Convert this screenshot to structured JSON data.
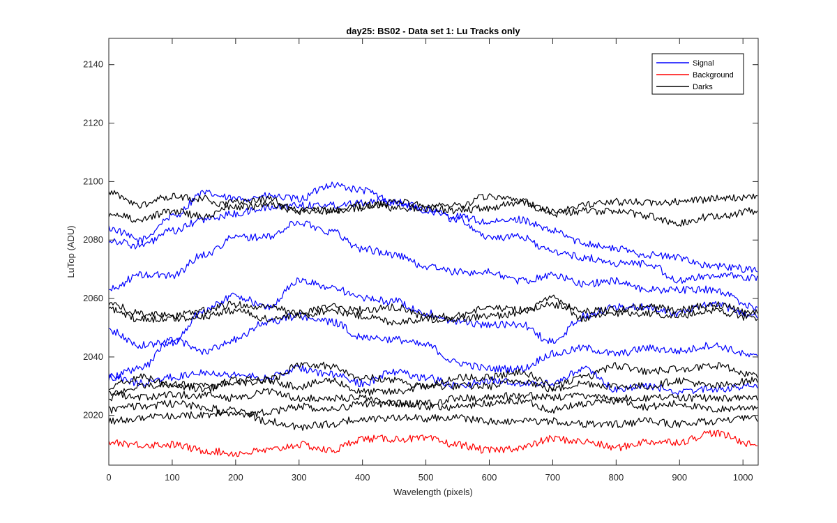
{
  "chart_data": {
    "type": "line",
    "title": "day25: BS02 - Data set 1: Lu Tracks only",
    "xlabel": "Wavelength (pixels)",
    "ylabel": "LuTop (ADU)",
    "xlim": [
      0,
      1024
    ],
    "ylim": [
      2003,
      2149
    ],
    "xticks": [
      0,
      100,
      200,
      300,
      400,
      500,
      600,
      700,
      800,
      900,
      1000
    ],
    "xtick_labels": [
      "0",
      "100",
      "200",
      "300",
      "400",
      "500",
      "600",
      "700",
      "800",
      "900",
      "1000"
    ],
    "yticks": [
      2020,
      2040,
      2060,
      2080,
      2100,
      2120,
      2140
    ],
    "ytick_labels": [
      "2020",
      "2040",
      "2060",
      "2080",
      "2100",
      "2120",
      "2140"
    ],
    "grid": false,
    "legend_position": "top-right",
    "legend": [
      {
        "label": "Signal",
        "color": "#0000ff"
      },
      {
        "label": "Background",
        "color": "#ff0000"
      },
      {
        "label": "Darks",
        "color": "#000000"
      }
    ],
    "x": [
      0,
      50,
      100,
      150,
      200,
      250,
      300,
      350,
      400,
      450,
      500,
      550,
      600,
      650,
      700,
      750,
      800,
      850,
      900,
      950,
      1024
    ],
    "series": [
      {
        "group": "Signal",
        "color": "#0000ff",
        "values": [
          2084,
          2080,
          2088,
          2096,
          2094,
          2095,
          2094,
          2099,
          2097,
          2093,
          2090,
          2088,
          2086,
          2087,
          2083,
          2079,
          2077,
          2075,
          2074,
          2071,
          2070
        ]
      },
      {
        "group": "Signal",
        "color": "#0000ff",
        "values": [
          2080,
          2078,
          2083,
          2087,
          2089,
          2091,
          2092,
          2092,
          2093,
          2093,
          2091,
          2087,
          2081,
          2081,
          2076,
          2074,
          2072,
          2072,
          2066,
          2068,
          2067
        ]
      },
      {
        "group": "Signal",
        "color": "#0000ff",
        "values": [
          2063,
          2068,
          2068,
          2075,
          2081,
          2081,
          2086,
          2083,
          2077,
          2075,
          2071,
          2069,
          2069,
          2066,
          2068,
          2065,
          2066,
          2063,
          2063,
          2063,
          2057
        ]
      },
      {
        "group": "Signal",
        "color": "#0000ff",
        "values": [
          2049,
          2044,
          2045,
          2056,
          2061,
          2057,
          2066,
          2064,
          2060,
          2059,
          2055,
          2052,
          2051,
          2051,
          2045,
          2054,
          2057,
          2057,
          2055,
          2058,
          2054
        ]
      },
      {
        "group": "Signal",
        "color": "#0000ff",
        "values": [
          2033,
          2036,
          2046,
          2042,
          2046,
          2052,
          2054,
          2052,
          2047,
          2046,
          2044,
          2038,
          2036,
          2036,
          2041,
          2043,
          2041,
          2043,
          2042,
          2044,
          2040
        ]
      },
      {
        "group": "Signal",
        "color": "#0000ff",
        "values": [
          2034,
          2031,
          2033,
          2035,
          2034,
          2033,
          2036,
          2034,
          2031,
          2035,
          2033,
          2030,
          2032,
          2031,
          2031,
          2036,
          2029,
          2030,
          2028,
          2029,
          2030
        ]
      },
      {
        "group": "Darks",
        "color": "#000000",
        "values": [
          2096,
          2092,
          2095,
          2094,
          2091,
          2092,
          2090,
          2090,
          2091,
          2093,
          2092,
          2092,
          2095,
          2093,
          2090,
          2092,
          2093,
          2093,
          2093,
          2094,
          2095
        ]
      },
      {
        "group": "Darks",
        "color": "#000000",
        "values": [
          2089,
          2087,
          2090,
          2088,
          2093,
          2094,
          2090,
          2090,
          2092,
          2091,
          2091,
          2090,
          2091,
          2093,
          2089,
          2090,
          2090,
          2088,
          2086,
          2088,
          2090
        ]
      },
      {
        "group": "Darks",
        "color": "#000000",
        "values": [
          2058,
          2055,
          2054,
          2056,
          2058,
          2057,
          2055,
          2057,
          2056,
          2057,
          2054,
          2054,
          2057,
          2056,
          2058,
          2056,
          2056,
          2057,
          2056,
          2058,
          2055
        ]
      },
      {
        "group": "Darks",
        "color": "#000000",
        "values": [
          2056,
          2053,
          2053,
          2054,
          2056,
          2053,
          2054,
          2056,
          2054,
          2052,
          2053,
          2053,
          2054,
          2055,
          2060,
          2053,
          2055,
          2055,
          2054,
          2056,
          2053
        ]
      },
      {
        "group": "Darks",
        "color": "#000000",
        "values": [
          2030,
          2033,
          2030,
          2030,
          2031,
          2032,
          2037,
          2037,
          2033,
          2032,
          2030,
          2033,
          2033,
          2035,
          2030,
          2033,
          2037,
          2035,
          2036,
          2037,
          2034
        ]
      },
      {
        "group": "Darks",
        "color": "#000000",
        "values": [
          2026,
          2030,
          2031,
          2029,
          2032,
          2032,
          2030,
          2032,
          2028,
          2028,
          2030,
          2030,
          2030,
          2032,
          2029,
          2031,
          2030,
          2030,
          2032,
          2030,
          2032
        ]
      },
      {
        "group": "Darks",
        "color": "#000000",
        "values": [
          2028,
          2026,
          2027,
          2027,
          2026,
          2028,
          2026,
          2026,
          2026,
          2024,
          2024,
          2026,
          2026,
          2027,
          2026,
          2027,
          2026,
          2026,
          2026,
          2026,
          2026
        ]
      },
      {
        "group": "Darks",
        "color": "#000000",
        "values": [
          2022,
          2023,
          2024,
          2023,
          2020,
          2021,
          2023,
          2022,
          2024,
          2024,
          2023,
          2023,
          2024,
          2025,
          2022,
          2024,
          2025,
          2023,
          2024,
          2022,
          2023
        ]
      },
      {
        "group": "Darks",
        "color": "#000000",
        "values": [
          2018,
          2019,
          2020,
          2020,
          2022,
          2018,
          2016,
          2017,
          2019,
          2019,
          2019,
          2019,
          2018,
          2018,
          2018,
          2017,
          2017,
          2018,
          2017,
          2018,
          2019
        ]
      },
      {
        "group": "Background",
        "color": "#ff0000",
        "values": [
          2011,
          2010,
          2010,
          2008,
          2007,
          2008,
          2010,
          2008,
          2012,
          2012,
          2012,
          2010,
          2008,
          2009,
          2012,
          2011,
          2009,
          2011,
          2011,
          2014,
          2010
        ]
      }
    ]
  }
}
